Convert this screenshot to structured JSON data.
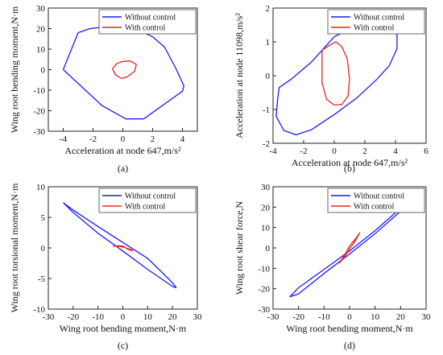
{
  "chart_data": [
    {
      "id": "a",
      "type": "line",
      "panel_label": "(a)",
      "xlabel": "Acceleration at node 647,m/s²",
      "ylabel": "Wing root bending moment,N·m",
      "xlim": [
        -5,
        5
      ],
      "ylim": [
        -30,
        30
      ],
      "xticks": [
        -4,
        -2,
        0,
        2,
        4
      ],
      "yticks": [
        -30,
        -20,
        -10,
        0,
        10,
        20,
        30
      ],
      "legend_position": "top-right",
      "grid": false,
      "series": [
        {
          "name": "Without control",
          "color": "#1a1aff",
          "x": [
            -4.0,
            -3.0,
            -2.2,
            -1.0,
            0.0,
            1.0,
            2.0,
            2.8,
            3.6,
            4.1,
            4.0,
            1.4,
            0.2,
            -1.4,
            -4.0
          ],
          "y": [
            0.0,
            18.0,
            20.0,
            21.0,
            20.8,
            19.5,
            16.0,
            11.0,
            0.0,
            -8.0,
            -10.5,
            -24.0,
            -24.0,
            -17.5,
            0.0
          ]
        },
        {
          "name": "With control",
          "color": "#ee2222",
          "x": [
            -0.7,
            -0.4,
            0.0,
            0.5,
            0.9,
            0.8,
            0.3,
            -0.1,
            -0.5,
            -0.7
          ],
          "y": [
            0.5,
            3.0,
            4.0,
            4.2,
            2.5,
            -0.8,
            -3.5,
            -4.3,
            -2.5,
            0.5
          ]
        }
      ]
    },
    {
      "id": "b",
      "type": "line",
      "panel_label": "(b)",
      "xlabel": "Acceleration at node 647,m/s²",
      "ylabel": "Acceleration at node 11098,m/s²",
      "xlim": [
        -4,
        6
      ],
      "ylim": [
        -2,
        2
      ],
      "xticks": [
        -4,
        -2,
        0,
        2,
        4,
        6
      ],
      "yticks": [
        -2,
        -1,
        0,
        1,
        2
      ],
      "legend_position": "top-right",
      "grid": false,
      "series": [
        {
          "name": "Without control",
          "color": "#1a1aff",
          "x": [
            -3.6,
            -2.8,
            -1.5,
            0.0,
            1.5,
            2.7,
            3.5,
            4.1,
            4.1,
            3.6,
            2.8,
            1.5,
            0.0,
            -1.5,
            -2.5,
            -3.3,
            -3.8,
            -3.7,
            -3.6
          ],
          "y": [
            -0.35,
            -0.1,
            0.4,
            1.15,
            1.5,
            1.68,
            1.6,
            1.2,
            0.8,
            0.3,
            -0.1,
            -0.65,
            -1.15,
            -1.6,
            -1.75,
            -1.62,
            -1.2,
            -0.7,
            -0.35
          ]
        },
        {
          "name": "With control",
          "color": "#ee2222",
          "x": [
            -0.8,
            -0.3,
            0.1,
            0.5,
            0.85,
            1.0,
            0.9,
            0.5,
            0.0,
            -0.5,
            -0.8,
            -0.8
          ],
          "y": [
            0.75,
            0.9,
            1.0,
            0.85,
            0.5,
            -0.1,
            -0.6,
            -0.85,
            -0.87,
            -0.7,
            -0.2,
            0.75
          ]
        }
      ]
    },
    {
      "id": "c",
      "type": "line",
      "panel_label": "(c)",
      "xlabel": "Wing root bending moment,N·m",
      "ylabel": "Wing root torsional moment,N·m",
      "xlim": [
        -30,
        30
      ],
      "ylim": [
        -10,
        10
      ],
      "xticks": [
        -30,
        -20,
        -10,
        0,
        10,
        20,
        30
      ],
      "yticks": [
        -10,
        -5,
        0,
        5,
        10
      ],
      "legend_position": "top-right",
      "grid": false,
      "series": [
        {
          "name": "Without control",
          "color": "#1a1aff",
          "x": [
            -24,
            -20,
            -10,
            0,
            10,
            20,
            21.5,
            20,
            10,
            0,
            -10,
            -20,
            -24
          ],
          "y": [
            7.4,
            6.2,
            3.5,
            0.9,
            -1.7,
            -5.7,
            -6.5,
            -6.3,
            -3.5,
            -0.5,
            2.4,
            5.8,
            7.4
          ]
        },
        {
          "name": "With control",
          "color": "#ee2222",
          "x": [
            -4,
            -2,
            0,
            2,
            4,
            3.5,
            2,
            0,
            -2,
            -4
          ],
          "y": [
            0.3,
            0.35,
            0.3,
            -0.2,
            -0.5,
            -0.3,
            -0.1,
            0.15,
            0.3,
            0.3
          ]
        }
      ]
    },
    {
      "id": "d",
      "type": "line",
      "panel_label": "(d)",
      "xlabel": "Wing root bending moment,N·m",
      "ylabel": "Wing root shear force,N",
      "xlim": [
        -30,
        30
      ],
      "ylim": [
        -30,
        30
      ],
      "xticks": [
        -30,
        -20,
        -10,
        0,
        10,
        20,
        30
      ],
      "yticks": [
        -30,
        -20,
        -10,
        0,
        10,
        20,
        30
      ],
      "legend_position": "top-right",
      "grid": false,
      "series": [
        {
          "name": "Without control",
          "color": "#1a1aff",
          "x": [
            -23.5,
            -20,
            -10,
            0,
            10,
            20,
            21.5,
            20,
            10,
            0,
            -10,
            -20,
            -23.5
          ],
          "y": [
            -24.0,
            -22.5,
            -12.5,
            -3.0,
            7.0,
            18.0,
            22.0,
            19.5,
            8.5,
            -1.5,
            -10.5,
            -19.5,
            -24.0
          ]
        },
        {
          "name": "With control",
          "color": "#ee2222",
          "x": [
            -4,
            -2,
            0,
            2,
            4,
            3.5,
            2,
            0,
            -2,
            -4
          ],
          "y": [
            -7.5,
            -4.5,
            -0.5,
            3.0,
            7.5,
            6.5,
            4.0,
            1.0,
            -3.5,
            -7.5
          ]
        }
      ]
    }
  ]
}
